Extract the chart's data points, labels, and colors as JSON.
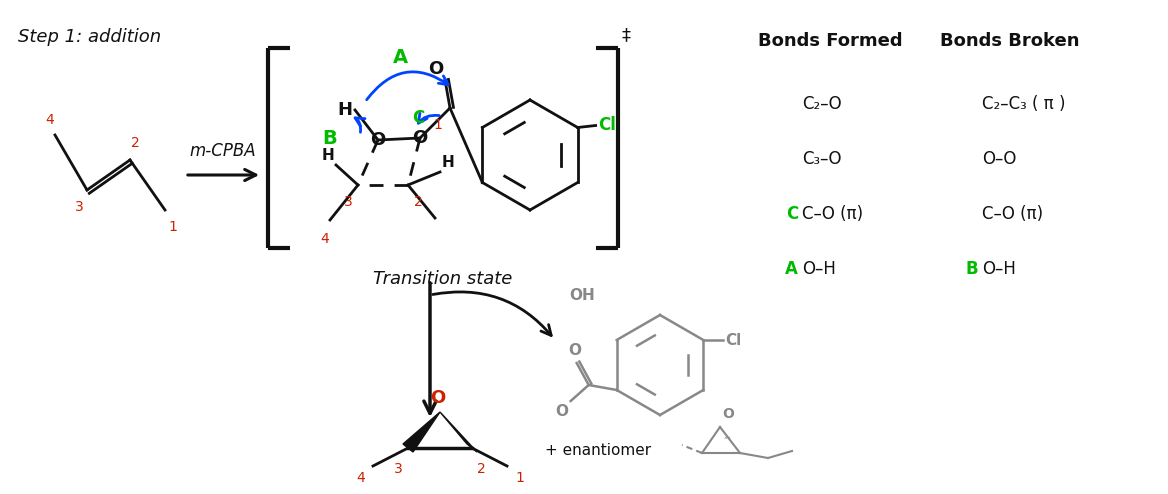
{
  "bg_color": "#ffffff",
  "step_label": "Step 1: addition",
  "transition_state_label": "Transition state",
  "reagent_label": "m-CPBA",
  "bonds_formed_header": "Bonds Formed",
  "bonds_broken_header": "Bonds Broken",
  "bonds_formed": [
    "C₂–O",
    "C₃–O",
    "C–O (π)",
    "O–H"
  ],
  "bonds_broken": [
    "C₂–C₃ ( π )",
    "O–O",
    "C–O (π)",
    "O–H"
  ],
  "bonds_formed_prefixes": [
    "",
    "",
    "C",
    "A"
  ],
  "bonds_broken_prefixes": [
    "",
    "",
    "",
    "B"
  ],
  "green": "#00bb00",
  "red": "#cc2200",
  "blue": "#0044ff",
  "black": "#111111",
  "gray": "#aaaaaa",
  "dark_gray": "#888888"
}
